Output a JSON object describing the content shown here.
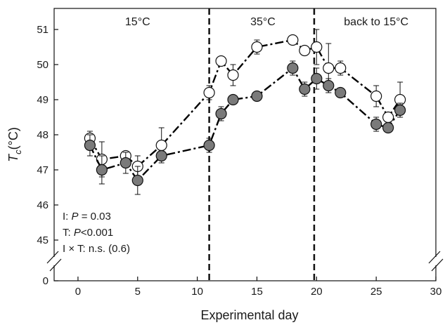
{
  "chart_data": {
    "type": "line",
    "xlabel": "Experimental day",
    "ylabel": {
      "symbol": "T",
      "subscript": "c",
      "unit": "(°C)"
    },
    "xlim": [
      -2,
      30
    ],
    "xticks": [
      0,
      5,
      10,
      15,
      20,
      25,
      30
    ],
    "ylim_lower": [
      0,
      0.6
    ],
    "ylim_upper": [
      44.6,
      51.6
    ],
    "yticks": [
      0,
      45,
      46,
      47,
      48,
      49,
      50,
      51
    ],
    "axis_break": true,
    "grid": false,
    "legend": "none",
    "regions": [
      {
        "label": "15°C",
        "x_center": 5
      },
      {
        "label": "35°C",
        "x_center": 15.5
      },
      {
        "label": "back to 15°C",
        "x_center": 25
      }
    ],
    "boundaries": [
      11,
      19.8
    ],
    "series": [
      {
        "marker": "open-circle",
        "line": "dash-dot",
        "color": "#000000",
        "fill": "#ffffff",
        "points": [
          {
            "x": 1,
            "y": 47.9,
            "err": 0.2
          },
          {
            "x": 2,
            "y": 47.3,
            "err": 0.5
          },
          {
            "x": 4,
            "y": 47.4,
            "err": 0.1
          },
          {
            "x": 5,
            "y": 47.1,
            "err": 0.3
          },
          {
            "x": 7,
            "y": 47.7,
            "err": 0.5
          },
          {
            "x": 11,
            "y": 49.2,
            "err": 0.2
          },
          {
            "x": 12,
            "y": 50.1,
            "err": 0.1
          },
          {
            "x": 13,
            "y": 49.7,
            "err": 0.3
          },
          {
            "x": 15,
            "y": 50.5,
            "err": 0.2
          },
          {
            "x": 18,
            "y": 50.7,
            "err": 0.05
          },
          {
            "x": 19,
            "y": 50.4,
            "err": 0.05
          },
          {
            "x": 20,
            "y": 50.5,
            "err": 0.5
          },
          {
            "x": 21,
            "y": 49.9,
            "err": 0.7
          },
          {
            "x": 22,
            "y": 49.9,
            "err": 0.2
          },
          {
            "x": 25,
            "y": 49.1,
            "err": 0.3
          },
          {
            "x": 26,
            "y": 48.5,
            "err": 0.1
          },
          {
            "x": 27,
            "y": 49.0,
            "err": 0.5
          }
        ]
      },
      {
        "marker": "filled-circle",
        "line": "dash-dot",
        "color": "#000000",
        "fill": "#7a7a7a",
        "points": [
          {
            "x": 1,
            "y": 47.7,
            "err": 0.3
          },
          {
            "x": 2,
            "y": 47.0,
            "err": 0.4
          },
          {
            "x": 4,
            "y": 47.2,
            "err": 0.3
          },
          {
            "x": 5,
            "y": 46.7,
            "err": 0.4
          },
          {
            "x": 7,
            "y": 47.4,
            "err": 0.1
          },
          {
            "x": 11,
            "y": 47.7,
            "err": 0.2
          },
          {
            "x": 12,
            "y": 48.6,
            "err": 0.2
          },
          {
            "x": 13,
            "y": 49.0,
            "err": 0.1
          },
          {
            "x": 15,
            "y": 49.1,
            "err": 0.1
          },
          {
            "x": 18,
            "y": 49.9,
            "err": 0.2
          },
          {
            "x": 19,
            "y": 49.3,
            "err": 0.2
          },
          {
            "x": 20,
            "y": 49.6,
            "err": 0.3
          },
          {
            "x": 21,
            "y": 49.4,
            "err": 0.2
          },
          {
            "x": 22,
            "y": 49.2,
            "err": 0.1
          },
          {
            "x": 25,
            "y": 48.3,
            "err": 0.2
          },
          {
            "x": 26,
            "y": 48.2,
            "err": 0.1
          },
          {
            "x": 27,
            "y": 48.7,
            "err": 0.2
          }
        ]
      }
    ],
    "annotations": [
      {
        "prefix": "I: ",
        "italic": "P",
        "suffix": " = 0.03"
      },
      {
        "prefix": "T: ",
        "italic": "P",
        "suffix": "<0.001"
      },
      {
        "prefix": "I × T: n.s. (0.6)",
        "italic": "",
        "suffix": ""
      }
    ]
  }
}
